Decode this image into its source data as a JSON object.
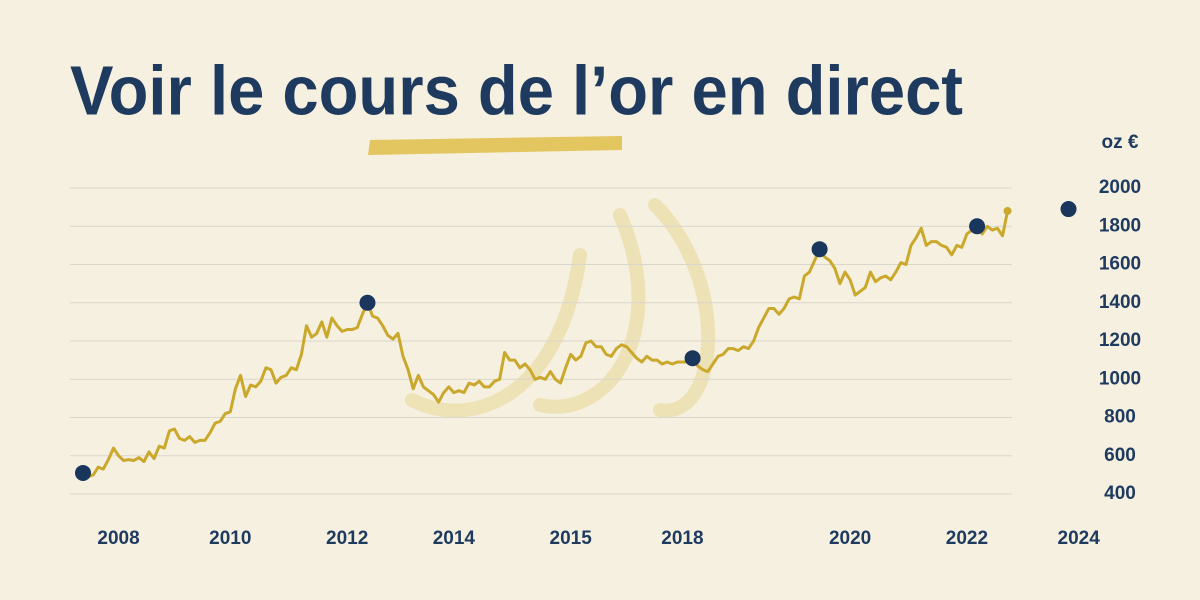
{
  "chart_data": {
    "type": "line",
    "title": "Voir le cours de l’or en direct",
    "y_unit": "oz €",
    "color": "#c9a82c",
    "marker_color": "#1b365d",
    "grid": true,
    "values": [
      480,
      490,
      500,
      540,
      530,
      580,
      640,
      600,
      575,
      580,
      575,
      590,
      570,
      620,
      585,
      650,
      640,
      730,
      740,
      690,
      680,
      700,
      670,
      680,
      680,
      720,
      770,
      780,
      820,
      830,
      950,
      1020,
      910,
      970,
      960,
      990,
      1060,
      1050,
      980,
      1010,
      1020,
      1060,
      1050,
      1130,
      1280,
      1220,
      1240,
      1300,
      1220,
      1320,
      1280,
      1250,
      1260,
      1260,
      1270,
      1340,
      1400,
      1330,
      1320,
      1280,
      1230,
      1210,
      1240,
      1120,
      1050,
      950,
      1020,
      960,
      940,
      920,
      880,
      930,
      960,
      930,
      940,
      930,
      980,
      970,
      990,
      960,
      960,
      990,
      1000,
      1140,
      1100,
      1100,
      1060,
      1080,
      1050,
      1000,
      1010,
      1000,
      1040,
      1000,
      980,
      1060,
      1130,
      1100,
      1120,
      1190,
      1200,
      1170,
      1170,
      1130,
      1120,
      1160,
      1180,
      1170,
      1140,
      1110,
      1090,
      1120,
      1100,
      1100,
      1080,
      1090,
      1080,
      1090,
      1090,
      1090,
      1110,
      1070,
      1050,
      1040,
      1080,
      1120,
      1130,
      1160,
      1160,
      1150,
      1170,
      1160,
      1200,
      1270,
      1320,
      1370,
      1370,
      1340,
      1370,
      1420,
      1430,
      1420,
      1540,
      1560,
      1620,
      1680,
      1640,
      1620,
      1580,
      1500,
      1560,
      1520,
      1440,
      1460,
      1480,
      1560,
      1510,
      1530,
      1540,
      1520,
      1560,
      1610,
      1600,
      1700,
      1740,
      1790,
      1700,
      1720,
      1720,
      1700,
      1690,
      1650,
      1700,
      1690,
      1760,
      1780,
      1800,
      1760,
      1800,
      1780,
      1790,
      1750,
      1880
    ],
    "highlights": {
      "x": [
        0,
        56,
        120,
        145,
        176,
        194
      ],
      "values": [
        510,
        1400,
        1110,
        1680,
        1800,
        1890
      ]
    },
    "xlim": [
      0,
      200
    ],
    "xticks": [
      {
        "value": 7,
        "label": "2008"
      },
      {
        "value": 29,
        "label": "2010"
      },
      {
        "value": 52,
        "label": "2012"
      },
      {
        "value": 73,
        "label": "2014"
      },
      {
        "value": 96,
        "label": "2015"
      },
      {
        "value": 118,
        "label": "2018"
      },
      {
        "value": 151,
        "label": "2020"
      },
      {
        "value": 174,
        "label": "2022"
      },
      {
        "value": 196,
        "label": "2024"
      }
    ],
    "ylim": [
      400,
      2000
    ],
    "yticks": [
      400,
      600,
      800,
      1000,
      1200,
      1400,
      1600,
      1800,
      2000
    ]
  }
}
